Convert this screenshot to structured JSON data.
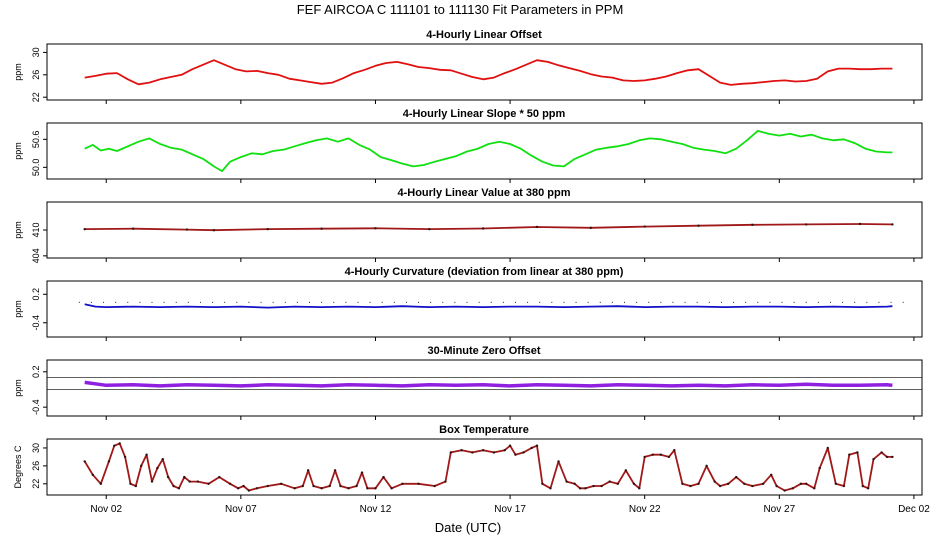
{
  "figure": {
    "title": "FEF   AIRCOA C   111101 to 111130   Fit Parameters in PPM",
    "xlabel": "Date (UTC)",
    "x_ticks": [
      {
        "day": 2,
        "label": "Nov 02"
      },
      {
        "day": 7,
        "label": "Nov 07"
      },
      {
        "day": 12,
        "label": "Nov 12"
      },
      {
        "day": 17,
        "label": "Nov 17"
      },
      {
        "day": 22,
        "label": "Nov 22"
      },
      {
        "day": 27,
        "label": "Nov 27"
      },
      {
        "day": 32,
        "label": "Dec 02"
      }
    ],
    "x_range": [
      -0.2,
      32.3
    ],
    "data_range": [
      1.15,
      31.2
    ]
  },
  "chart_data": [
    {
      "type": "line",
      "title": "4-Hourly Linear Offset",
      "ylabel": "ppm",
      "color": "#e01010",
      "ylim": [
        21.5,
        31.5
      ],
      "yticks": [
        22,
        26,
        30
      ],
      "baselines": [],
      "x": [
        1.2,
        1.6,
        2.0,
        2.4,
        2.8,
        3.2,
        3.6,
        4.0,
        4.4,
        4.8,
        5.2,
        5.6,
        6.0,
        6.4,
        6.8,
        7.2,
        7.6,
        8.0,
        8.4,
        8.8,
        9.2,
        9.6,
        10.0,
        10.4,
        10.8,
        11.2,
        11.6,
        12.0,
        12.4,
        12.8,
        13.2,
        13.6,
        14.0,
        14.4,
        14.8,
        15.2,
        15.6,
        16.0,
        16.4,
        16.8,
        17.2,
        17.6,
        18.0,
        18.4,
        18.8,
        19.2,
        19.6,
        20.0,
        20.4,
        20.8,
        21.2,
        21.6,
        22.0,
        22.4,
        22.8,
        23.2,
        23.6,
        24.0,
        24.4,
        24.8,
        25.2,
        25.6,
        26.0,
        26.4,
        26.8,
        27.2,
        27.6,
        28.0,
        28.4,
        28.8,
        29.2,
        29.6,
        30.0,
        30.4,
        30.8,
        31.2
      ],
      "values": [
        25.5,
        25.8,
        26.2,
        26.3,
        25.2,
        24.3,
        24.6,
        25.2,
        25.6,
        26.0,
        27.0,
        27.8,
        28.6,
        27.8,
        27.0,
        26.6,
        26.7,
        26.3,
        26.0,
        25.3,
        25.0,
        24.7,
        24.4,
        24.6,
        25.4,
        26.3,
        26.9,
        27.6,
        28.1,
        28.3,
        27.9,
        27.4,
        27.2,
        26.9,
        26.8,
        26.2,
        25.6,
        25.2,
        25.5,
        26.3,
        27.0,
        27.8,
        28.6,
        28.3,
        27.7,
        27.2,
        26.7,
        26.1,
        25.7,
        25.5,
        25.0,
        24.9,
        25.0,
        25.3,
        25.7,
        26.3,
        26.8,
        27.0,
        25.8,
        24.6,
        24.2,
        24.4,
        24.5,
        24.7,
        24.9,
        25.0,
        24.8,
        24.9,
        25.3,
        26.6,
        27.1,
        27.1,
        27.0,
        27.0,
        27.1,
        27.1
      ]
    },
    {
      "type": "line",
      "title": "4-Hourly Linear Slope * 50 ppm",
      "ylabel": "ppm",
      "color": "#10e010",
      "ylim": [
        49.75,
        50.95
      ],
      "yticks": [
        50.0,
        50.6
      ],
      "ytick_labels": [
        "50.0",
        "50.6"
      ],
      "baselines": [],
      "x": [
        1.2,
        1.5,
        1.8,
        2.1,
        2.4,
        2.8,
        3.2,
        3.6,
        4.0,
        4.4,
        4.8,
        5.2,
        5.6,
        6.0,
        6.3,
        6.6,
        7.0,
        7.4,
        7.8,
        8.2,
        8.6,
        9.0,
        9.4,
        9.8,
        10.2,
        10.6,
        11.0,
        11.4,
        11.8,
        12.2,
        12.6,
        13.0,
        13.4,
        13.8,
        14.2,
        14.6,
        15.0,
        15.4,
        15.8,
        16.2,
        16.6,
        17.0,
        17.4,
        17.8,
        18.2,
        18.6,
        19.0,
        19.4,
        19.8,
        20.2,
        20.6,
        21.0,
        21.4,
        21.8,
        22.2,
        22.6,
        23.0,
        23.4,
        23.8,
        24.2,
        24.6,
        25.0,
        25.4,
        25.8,
        26.2,
        26.6,
        27.0,
        27.4,
        27.8,
        28.2,
        28.6,
        29.0,
        29.4,
        29.8,
        30.2,
        30.6,
        31.0,
        31.2
      ],
      "values": [
        50.4,
        50.48,
        50.36,
        50.4,
        50.35,
        50.45,
        50.55,
        50.62,
        50.5,
        50.42,
        50.38,
        50.28,
        50.18,
        50.02,
        49.92,
        50.12,
        50.22,
        50.3,
        50.28,
        50.35,
        50.38,
        50.45,
        50.52,
        50.58,
        50.62,
        50.55,
        50.62,
        50.48,
        50.38,
        50.22,
        50.15,
        50.08,
        50.02,
        50.05,
        50.12,
        50.18,
        50.24,
        50.34,
        50.4,
        50.5,
        50.55,
        50.5,
        50.4,
        50.25,
        50.12,
        50.04,
        50.02,
        50.18,
        50.28,
        50.38,
        50.42,
        50.45,
        50.5,
        50.58,
        50.62,
        50.6,
        50.55,
        50.5,
        50.42,
        50.38,
        50.35,
        50.3,
        50.4,
        50.58,
        50.78,
        50.72,
        50.68,
        50.72,
        50.66,
        50.7,
        50.62,
        50.58,
        50.6,
        50.52,
        50.4,
        50.34,
        50.32,
        50.32
      ]
    },
    {
      "type": "line",
      "title": "4-Hourly Linear Value at 380 ppm",
      "ylabel": "ppm",
      "color": "#a01818",
      "ylim": [
        403.5,
        416.5
      ],
      "yticks": [
        404,
        410
      ],
      "baselines": [],
      "x": [
        1.2,
        3.0,
        5.0,
        6.0,
        8.0,
        10.0,
        12.0,
        14.0,
        16.0,
        18.0,
        20.0,
        22.0,
        24.0,
        26.0,
        28.0,
        30.0,
        31.2
      ],
      "values": [
        410.2,
        410.3,
        410.1,
        409.95,
        410.2,
        410.3,
        410.4,
        410.2,
        410.35,
        410.7,
        410.5,
        410.8,
        411.0,
        411.2,
        411.3,
        411.4,
        411.3
      ]
    },
    {
      "type": "line",
      "title": "4-Hourly Curvature (deviation from linear at 380 ppm)",
      "ylabel": "ppm",
      "color": "#1010c8",
      "ylim": [
        -0.7,
        0.48
      ],
      "yticks": [
        -0.4,
        0.2
      ],
      "baselines": [],
      "x": [
        1.2,
        1.6,
        2.0,
        3.0,
        4.0,
        5.0,
        6.0,
        7.0,
        8.0,
        9.0,
        10.0,
        11.0,
        12.0,
        13.0,
        14.0,
        15.0,
        16.0,
        17.0,
        18.0,
        19.0,
        20.0,
        21.0,
        22.0,
        23.0,
        24.0,
        25.0,
        26.0,
        27.0,
        28.0,
        29.0,
        30.0,
        31.0,
        31.2
      ],
      "values": [
        -0.01,
        -0.06,
        -0.07,
        -0.06,
        -0.07,
        -0.06,
        -0.07,
        -0.06,
        -0.08,
        -0.06,
        -0.07,
        -0.06,
        -0.07,
        -0.05,
        -0.07,
        -0.06,
        -0.07,
        -0.06,
        -0.06,
        -0.07,
        -0.06,
        -0.05,
        -0.07,
        -0.06,
        -0.06,
        -0.07,
        -0.06,
        -0.06,
        -0.07,
        -0.06,
        -0.07,
        -0.06,
        -0.05
      ]
    },
    {
      "type": "line",
      "title": "30-Minute Zero Offset",
      "ylabel": "ppm",
      "color": "#9020e0",
      "ylim": [
        -0.55,
        0.4
      ],
      "yticks": [
        -0.4,
        0.2
      ],
      "baselines": [
        0.1,
        -0.1
      ],
      "x": [
        1.2,
        2.0,
        3.0,
        4.0,
        5.0,
        6.0,
        7.0,
        8.0,
        9.0,
        10.0,
        11.0,
        12.0,
        13.0,
        14.0,
        15.0,
        16.0,
        17.0,
        18.0,
        19.0,
        20.0,
        21.0,
        22.0,
        23.0,
        24.0,
        25.0,
        26.0,
        27.0,
        28.0,
        29.0,
        30.0,
        31.0,
        31.2
      ],
      "values": [
        0.02,
        -0.03,
        -0.02,
        -0.04,
        -0.02,
        -0.03,
        -0.04,
        -0.02,
        -0.03,
        -0.04,
        -0.02,
        -0.03,
        -0.04,
        -0.02,
        -0.03,
        -0.02,
        -0.04,
        -0.02,
        -0.03,
        -0.04,
        -0.02,
        -0.03,
        -0.04,
        -0.03,
        -0.04,
        -0.02,
        -0.03,
        -0.01,
        -0.03,
        -0.03,
        -0.02,
        -0.03
      ]
    },
    {
      "type": "line",
      "title": "Box Temperature",
      "ylabel": "Degrees C",
      "color": "#a01818",
      "ylim": [
        19.5,
        32
      ],
      "yticks": [
        22,
        26,
        30
      ],
      "baselines": [],
      "x": [
        1.2,
        1.5,
        1.8,
        2.1,
        2.3,
        2.5,
        2.7,
        2.9,
        3.1,
        3.3,
        3.5,
        3.7,
        3.9,
        4.1,
        4.3,
        4.5,
        4.7,
        4.9,
        5.1,
        5.4,
        5.8,
        6.2,
        6.6,
        6.9,
        7.1,
        7.3,
        7.6,
        8.0,
        8.5,
        9.0,
        9.3,
        9.5,
        9.7,
        10.0,
        10.3,
        10.5,
        10.7,
        11.0,
        11.3,
        11.5,
        11.7,
        12.0,
        12.3,
        12.6,
        13.0,
        13.6,
        14.2,
        14.6,
        14.8,
        15.2,
        15.6,
        16.0,
        16.4,
        16.8,
        17.0,
        17.2,
        17.5,
        17.8,
        18.0,
        18.2,
        18.5,
        18.8,
        19.1,
        19.4,
        19.6,
        19.8,
        20.1,
        20.4,
        20.7,
        21.0,
        21.3,
        21.6,
        21.8,
        22.0,
        22.3,
        22.6,
        22.9,
        23.1,
        23.4,
        23.7,
        24.0,
        24.3,
        24.6,
        24.8,
        25.1,
        25.4,
        25.7,
        26.0,
        26.4,
        26.7,
        26.9,
        27.2,
        27.5,
        27.8,
        28.0,
        28.3,
        28.5,
        28.8,
        29.1,
        29.4,
        29.6,
        29.9,
        30.1,
        30.3,
        30.5,
        30.8,
        31.0,
        31.2
      ],
      "values": [
        27,
        24,
        22,
        27,
        30.5,
        31,
        28,
        22,
        21.5,
        26,
        28.5,
        22.5,
        25.5,
        27.5,
        23.5,
        21.5,
        21,
        23.5,
        22.5,
        22.5,
        22,
        23.5,
        22,
        21,
        21.5,
        20.5,
        21,
        21.5,
        22,
        21,
        21.5,
        25,
        21.5,
        21,
        21.5,
        25,
        21.5,
        21,
        21.5,
        24.5,
        21,
        21,
        23.5,
        21,
        22,
        22,
        21.5,
        22.5,
        29,
        29.5,
        29,
        29.5,
        29,
        29.5,
        30.5,
        28.5,
        29,
        30,
        30.5,
        22,
        21,
        27,
        22.5,
        22,
        21,
        21,
        21.5,
        21.5,
        22.5,
        22,
        25,
        22,
        21,
        28,
        28.5,
        28.5,
        28,
        29.5,
        22,
        21.5,
        22,
        26,
        22.5,
        21.5,
        22,
        23.5,
        22,
        21.5,
        22,
        24,
        21.5,
        20.5,
        21,
        22,
        22,
        21,
        25.5,
        30,
        22,
        21.5,
        28.5,
        29,
        21.5,
        21,
        27.5,
        29,
        28,
        28
      ]
    }
  ]
}
